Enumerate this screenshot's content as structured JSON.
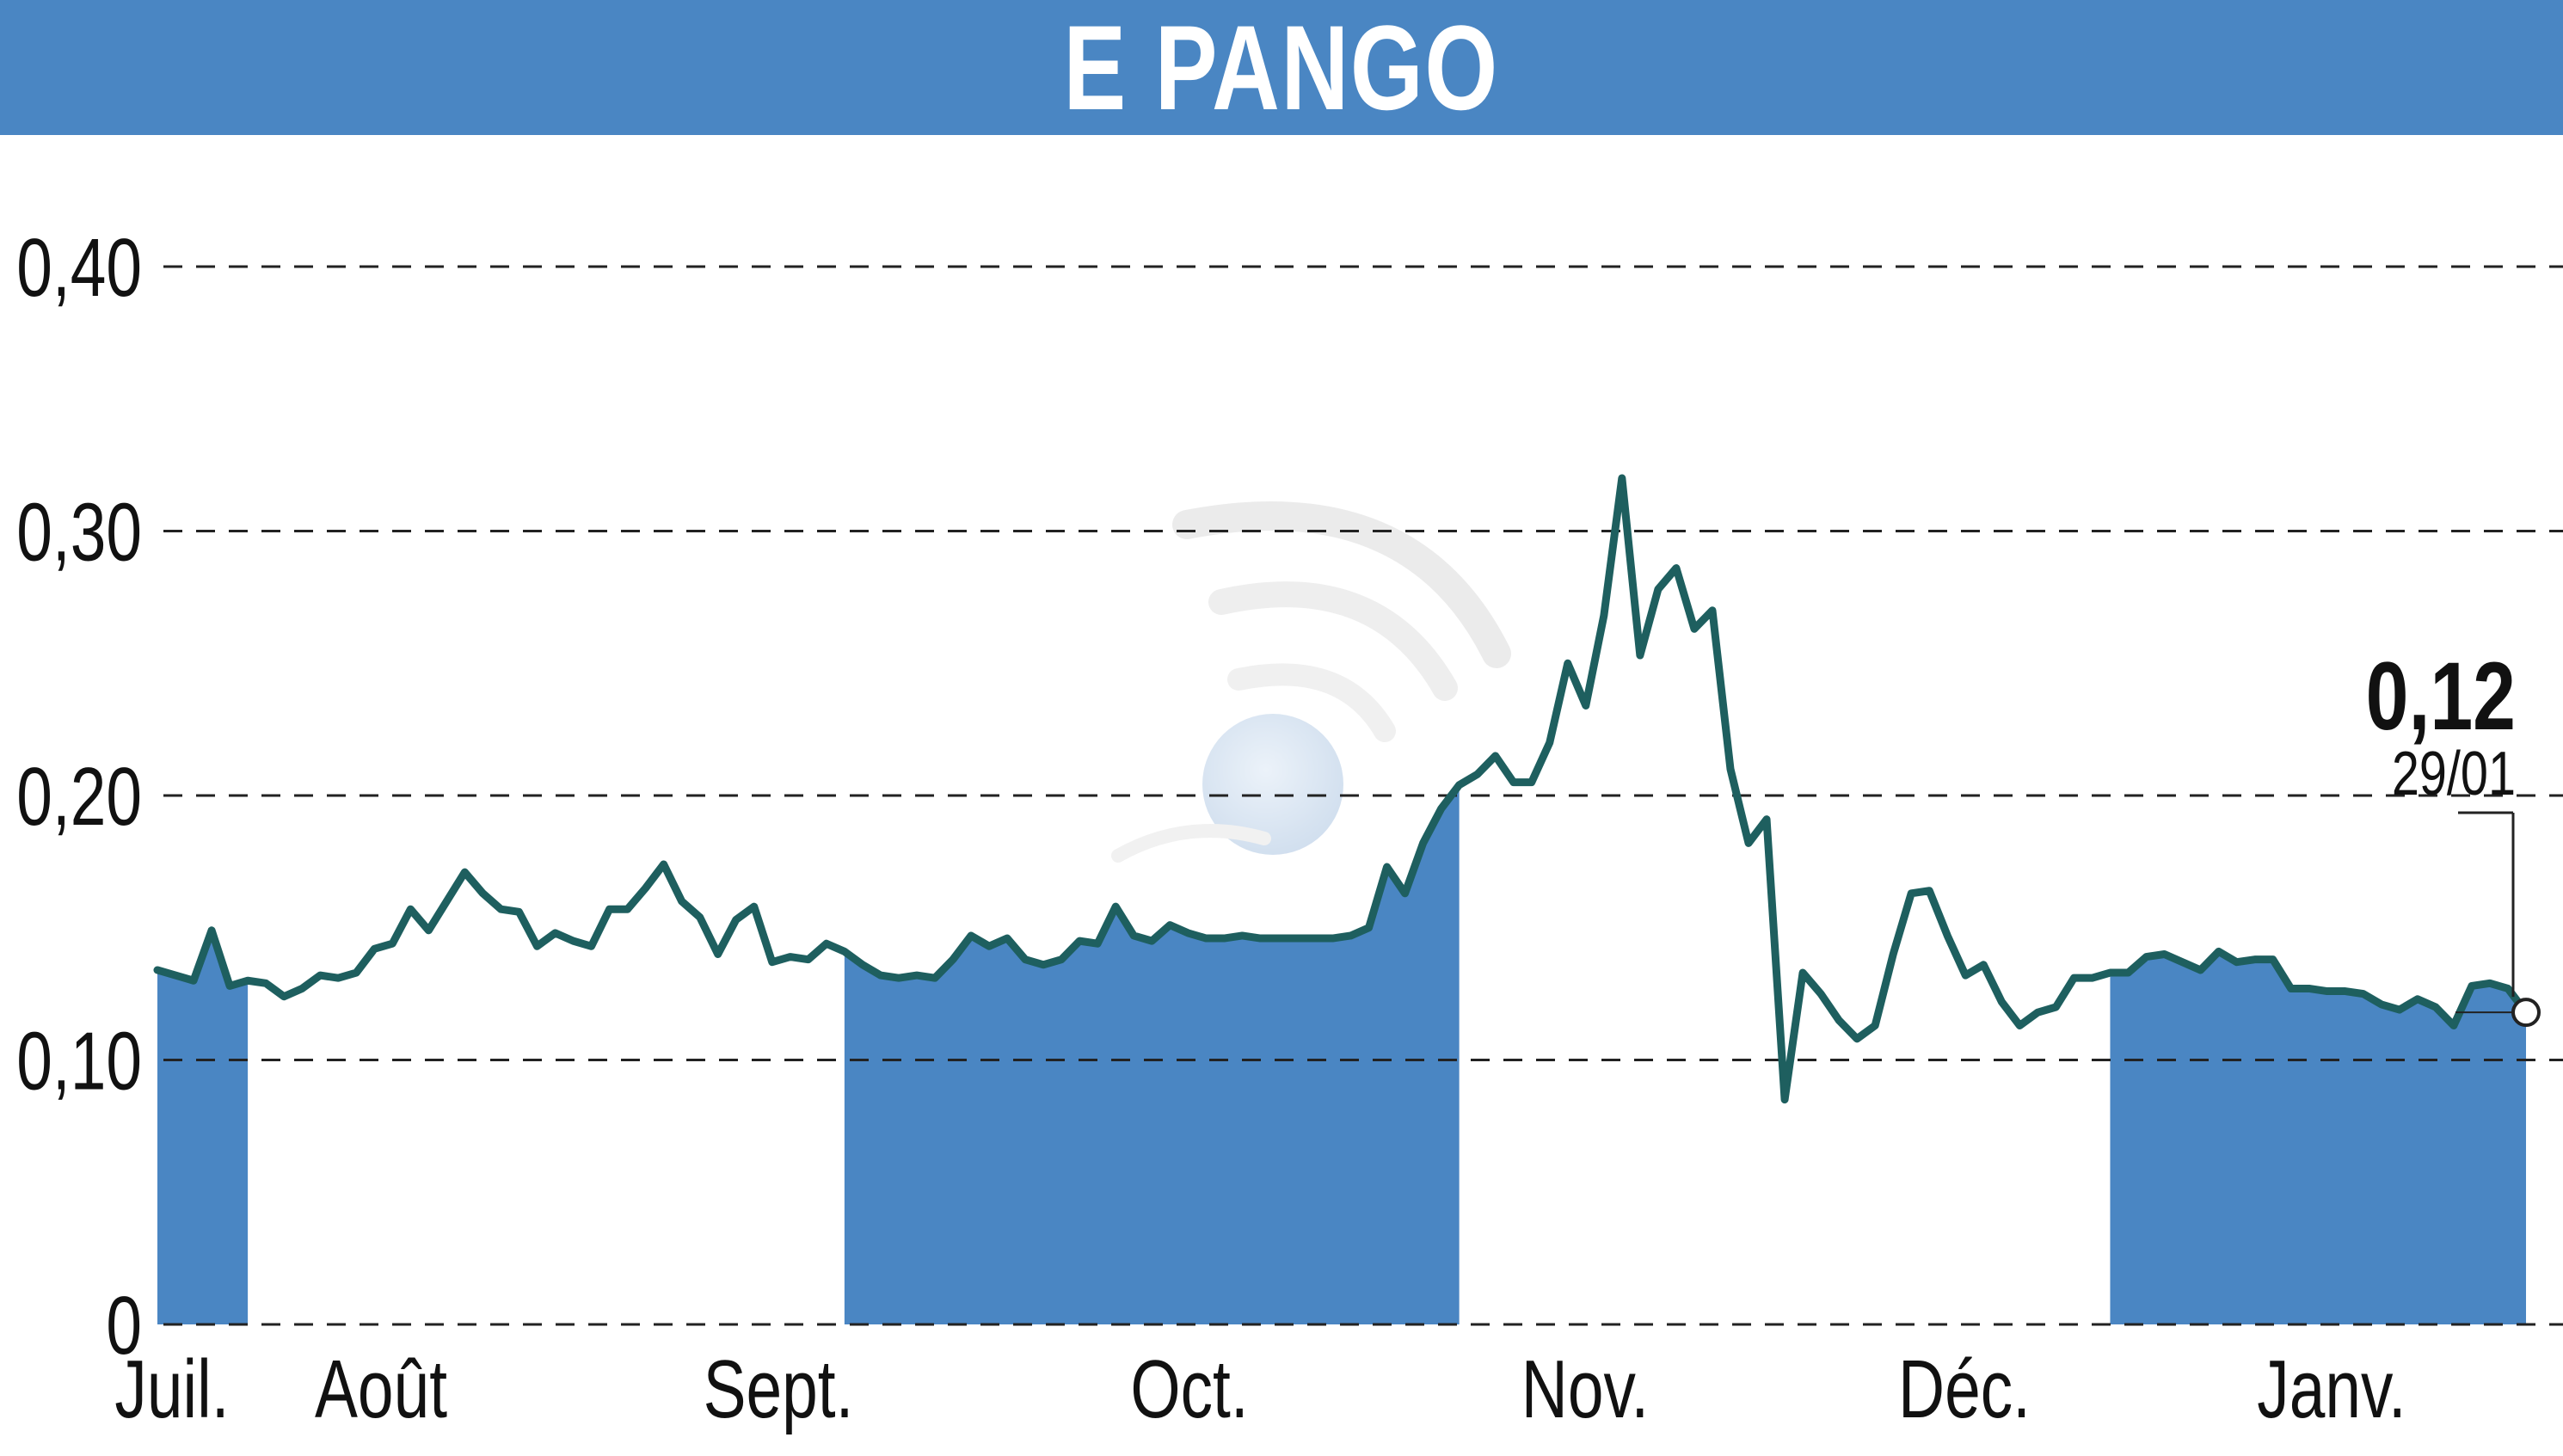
{
  "title": "E PANGO",
  "colors": {
    "header": "#4a86c3",
    "fill": "#4a86c3",
    "line": "#1e5f5f",
    "grid": "#222222"
  },
  "last_value": {
    "value": "0,12",
    "date": "29/01"
  },
  "chart_data": {
    "type": "line",
    "title": "E PANGO",
    "ylim": [
      0,
      0.4
    ],
    "y_ticks": [
      {
        "value": 0.4,
        "label": "0,40"
      },
      {
        "value": 0.3,
        "label": "0,30"
      },
      {
        "value": 0.2,
        "label": "0,20"
      },
      {
        "value": 0.1,
        "label": "0,10"
      },
      {
        "value": 0.0,
        "label": "0"
      }
    ],
    "grid": "horizontal dashed",
    "months": [
      {
        "label": "Juil.",
        "start": 0,
        "end": 5,
        "shaded": true
      },
      {
        "label": "Août",
        "start": 5,
        "end": 38,
        "shaded": false
      },
      {
        "label": "Sept.",
        "start": 38,
        "end": 72,
        "shaded": true
      },
      {
        "label": "Oct.",
        "start": 72,
        "end": 108,
        "shaded": false
      },
      {
        "label": "Nov.",
        "start": 108,
        "end": 139,
        "shaded": true
      },
      {
        "label": "Déc.",
        "start": 139,
        "end": 172,
        "shaded": false
      },
      {
        "label": "Janv.",
        "start": 172,
        "end": 200,
        "shaded": true
      }
    ],
    "series": [
      {
        "values": [
          0.134,
          0.132,
          0.13,
          0.149,
          0.128,
          0.13,
          0.129,
          0.124,
          0.127,
          0.132,
          0.131,
          0.133,
          0.142,
          0.144,
          0.157,
          0.149,
          0.16,
          0.171,
          0.163,
          0.157,
          0.156,
          0.143,
          0.148,
          0.145,
          0.143,
          0.157,
          0.157,
          0.165,
          0.174,
          0.16,
          0.154,
          0.14,
          0.153,
          0.158,
          0.137,
          0.139,
          0.138,
          0.144,
          0.141,
          0.136,
          0.132,
          0.131,
          0.132,
          0.131,
          0.138,
          0.147,
          0.143,
          0.146,
          0.138,
          0.136,
          0.138,
          0.145,
          0.144,
          0.158,
          0.147,
          0.145,
          0.151,
          0.148,
          0.146,
          0.146,
          0.147,
          0.146,
          0.146,
          0.146,
          0.146,
          0.146,
          0.147,
          0.15,
          0.173,
          0.163,
          0.182,
          0.195,
          0.204,
          0.208,
          0.215,
          0.205,
          0.205,
          0.22,
          0.25,
          0.234,
          0.268,
          0.32,
          0.253,
          0.278,
          0.286,
          0.263,
          0.27,
          0.21,
          0.182,
          0.191,
          0.085,
          0.133,
          0.125,
          0.115,
          0.108,
          0.113,
          0.14,
          0.163,
          0.164,
          0.147,
          0.132,
          0.136,
          0.122,
          0.113,
          0.118,
          0.12,
          0.131,
          0.131,
          0.133,
          0.133,
          0.139,
          0.14,
          0.137,
          0.134,
          0.141,
          0.137,
          0.138,
          0.138,
          0.127,
          0.127,
          0.126,
          0.126,
          0.125,
          0.121,
          0.119,
          0.123,
          0.12,
          0.113,
          0.128,
          0.129,
          0.127,
          0.118
        ]
      }
    ]
  }
}
